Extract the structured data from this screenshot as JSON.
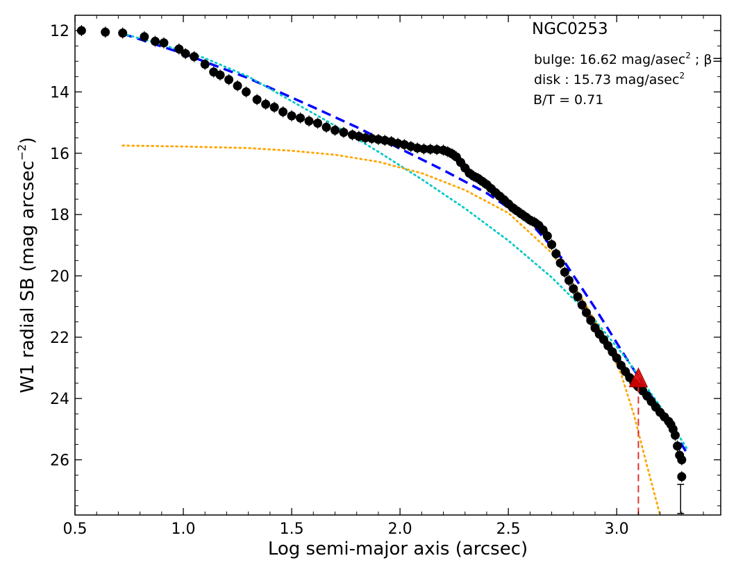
{
  "chart_data": {
    "type": "scatter",
    "xlabel": "Log semi-major axis (arcsec)",
    "ylabel": "W1 radial SB (mag arcsec",
    "ylabel_exp": "−2",
    "ylabel_close": ")",
    "xlim": [
      0.5,
      3.48
    ],
    "ylim": [
      27.8,
      11.5
    ],
    "y_inverted": true,
    "grid": false,
    "x_ticks": [
      0.5,
      1.0,
      1.5,
      2.0,
      2.5,
      3.0
    ],
    "x_tick_labels": [
      "0.5",
      "1.0",
      "1.5",
      "2.0",
      "2.5",
      "3.0"
    ],
    "y_ticks": [
      12,
      14,
      16,
      18,
      20,
      22,
      24,
      26
    ],
    "y_tick_labels": [
      "12",
      "14",
      "16",
      "18",
      "20",
      "22",
      "24",
      "26"
    ],
    "annotations": {
      "galaxy": "NGC0253",
      "bulge_label": "bulge: 16.62 mag/asec",
      "bulge_tail": " ; β=",
      "disk_label": "disk  : 15.73 mag/asec",
      "sq": "2",
      "bt": "B/T = 0.71"
    },
    "series": [
      {
        "kind": "points",
        "color": "#000000",
        "x": [
          0.53,
          0.64,
          0.72,
          0.82,
          0.87,
          0.91,
          0.98,
          1.01,
          1.05,
          1.1,
          1.14,
          1.17,
          1.21,
          1.25,
          1.29,
          1.34,
          1.38,
          1.42,
          1.46,
          1.5,
          1.54,
          1.58,
          1.62,
          1.66,
          1.7,
          1.74,
          1.78,
          1.81,
          1.84,
          1.87,
          1.9,
          1.93,
          1.96,
          1.99,
          2.02,
          2.05,
          2.08,
          2.11,
          2.14,
          2.17,
          2.2,
          2.22,
          2.24,
          2.26,
          2.28,
          2.3,
          2.32,
          2.34,
          2.36,
          2.38,
          2.4,
          2.42,
          2.44,
          2.46,
          2.48,
          2.5,
          2.52,
          2.54,
          2.56,
          2.58,
          2.6,
          2.62,
          2.64,
          2.66,
          2.68,
          2.7,
          2.72,
          2.74,
          2.76,
          2.78,
          2.8,
          2.82,
          2.84,
          2.86,
          2.88,
          2.9,
          2.92,
          2.94,
          2.96,
          2.98,
          3.0,
          3.02,
          3.04,
          3.06,
          3.08,
          3.1,
          3.12,
          3.14,
          3.16,
          3.18,
          3.2,
          3.22,
          3.24,
          3.25,
          3.26,
          3.27,
          3.28,
          3.29,
          3.3,
          3.3
        ],
        "y": [
          12.0,
          12.05,
          12.08,
          12.2,
          12.35,
          12.4,
          12.6,
          12.75,
          12.85,
          13.1,
          13.35,
          13.45,
          13.6,
          13.8,
          14.0,
          14.25,
          14.4,
          14.5,
          14.65,
          14.78,
          14.85,
          14.95,
          15.02,
          15.15,
          15.25,
          15.32,
          15.4,
          15.45,
          15.5,
          15.52,
          15.55,
          15.58,
          15.62,
          15.68,
          15.72,
          15.78,
          15.83,
          15.86,
          15.87,
          15.88,
          15.9,
          15.95,
          16.02,
          16.12,
          16.3,
          16.48,
          16.65,
          16.75,
          16.82,
          16.92,
          17.02,
          17.15,
          17.28,
          17.4,
          17.52,
          17.65,
          17.78,
          17.88,
          17.98,
          18.08,
          18.18,
          18.25,
          18.35,
          18.5,
          18.7,
          18.98,
          19.28,
          19.58,
          19.88,
          20.15,
          20.42,
          20.68,
          20.95,
          21.2,
          21.45,
          21.7,
          21.9,
          22.08,
          22.28,
          22.48,
          22.68,
          22.92,
          23.12,
          23.32,
          23.5,
          23.62,
          23.75,
          23.92,
          24.1,
          24.28,
          24.45,
          24.6,
          24.75,
          24.85,
          25.0,
          25.2,
          25.55,
          25.85,
          26.0,
          26.55
        ]
      },
      {
        "kind": "line",
        "style": "dashed",
        "color": "#0000ff",
        "x": [
          0.72,
          1.0,
          1.3,
          1.6,
          1.8,
          2.0,
          2.2,
          2.4,
          2.6,
          2.75,
          2.9,
          3.05,
          3.2,
          3.33
        ],
        "y": [
          12.1,
          12.75,
          13.55,
          14.5,
          15.15,
          15.85,
          16.55,
          17.3,
          18.25,
          19.45,
          21.05,
          22.75,
          24.35,
          25.85
        ]
      },
      {
        "kind": "line",
        "style": "dotted",
        "color": "#00c8c8",
        "x": [
          0.72,
          0.9,
          1.1,
          1.3,
          1.5,
          1.7,
          1.9,
          2.1,
          2.3,
          2.5,
          2.7,
          2.9,
          3.05,
          3.2,
          3.33
        ],
        "y": [
          12.1,
          12.45,
          12.9,
          13.5,
          14.3,
          15.1,
          15.95,
          16.85,
          17.8,
          18.85,
          20.05,
          21.45,
          22.75,
          24.25,
          25.7
        ]
      },
      {
        "kind": "line",
        "style": "dotted",
        "color": "#ffa500",
        "x": [
          0.72,
          1.0,
          1.3,
          1.5,
          1.7,
          1.9,
          2.1,
          2.3,
          2.5,
          2.7,
          2.85,
          2.95,
          3.02,
          3.08,
          3.14,
          3.2
        ],
        "y": [
          15.75,
          15.78,
          15.83,
          15.92,
          16.05,
          16.28,
          16.65,
          17.2,
          17.95,
          19.25,
          20.85,
          22.1,
          23.2,
          24.55,
          26.2,
          27.8
        ]
      }
    ],
    "marker": {
      "kind": "triangle",
      "color": "#dd0000",
      "x": 3.1,
      "y": 23.35,
      "vline_to_y": 27.8
    },
    "error_bar": {
      "x": 3.295,
      "y_low": 27.75,
      "y_high": 26.8
    }
  }
}
